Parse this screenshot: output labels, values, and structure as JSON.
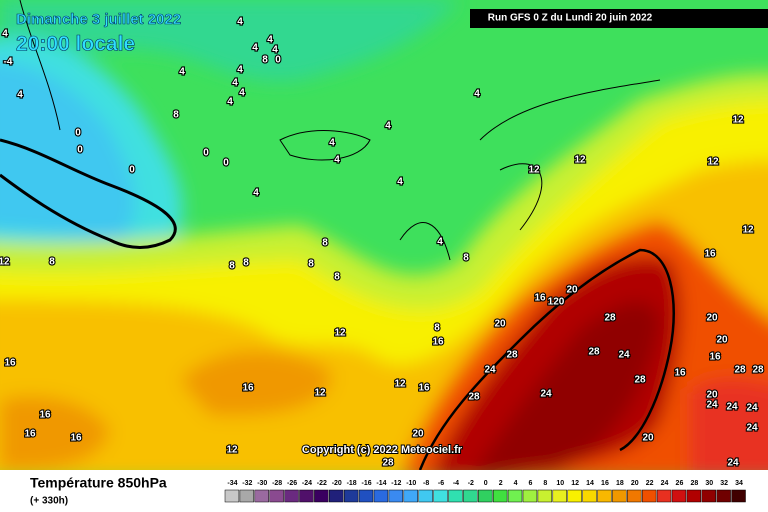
{
  "header": {
    "date": "Dimanche 3 juillet 2022",
    "time": "20:00 locale",
    "run": "Run GFS 0 Z du Lundi 20 juin 2022",
    "copyright": "Copyright (c) 2022 Meteociel.fr"
  },
  "legend": {
    "title": "Température 850hPa",
    "subtitle": "(+ 330h)",
    "ticks": [
      -34,
      -32,
      -30,
      -28,
      -26,
      -24,
      -22,
      -20,
      -18,
      -16,
      -14,
      -12,
      -10,
      -8,
      -6,
      -4,
      -2,
      0,
      2,
      4,
      6,
      8,
      10,
      12,
      14,
      16,
      18,
      20,
      22,
      24,
      26,
      28,
      30,
      32,
      34
    ],
    "colors": [
      "#c8c8c8",
      "#a8a8a8",
      "#9a6aa0",
      "#8a4a90",
      "#6a2a80",
      "#50106a",
      "#3a0060",
      "#20207a",
      "#1e3a9a",
      "#2050c0",
      "#2a6ae0",
      "#3a8af0",
      "#40a8f8",
      "#40c8f0",
      "#40e0e0",
      "#30e0b0",
      "#30d890",
      "#30d060",
      "#40e040",
      "#70f050",
      "#a0f040",
      "#c8f030",
      "#e8f020",
      "#f8f000",
      "#f8d800",
      "#f8b800",
      "#f09800",
      "#f07800",
      "#f05000",
      "#e83020",
      "#d01010",
      "#b00000",
      "#900000",
      "#700000",
      "#400000"
    ]
  },
  "contour_labels": [
    4,
    4,
    4,
    4,
    8,
    0,
    4,
    4,
    4,
    4,
    4,
    8,
    0,
    0,
    0,
    0,
    0,
    4,
    4,
    4,
    4,
    4,
    4,
    12,
    12,
    12,
    12,
    12,
    16,
    8,
    8,
    8,
    8,
    8,
    4,
    8,
    12,
    8,
    20,
    120,
    16,
    12,
    20,
    28,
    28,
    28,
    24,
    20,
    20,
    8,
    16,
    16,
    16,
    12,
    12,
    16,
    24,
    28,
    24,
    16,
    28,
    16,
    28,
    28,
    20,
    24,
    24,
    24,
    16,
    16,
    16,
    12,
    20,
    20,
    24,
    24,
    28,
    4,
    -4,
    4
  ]
}
